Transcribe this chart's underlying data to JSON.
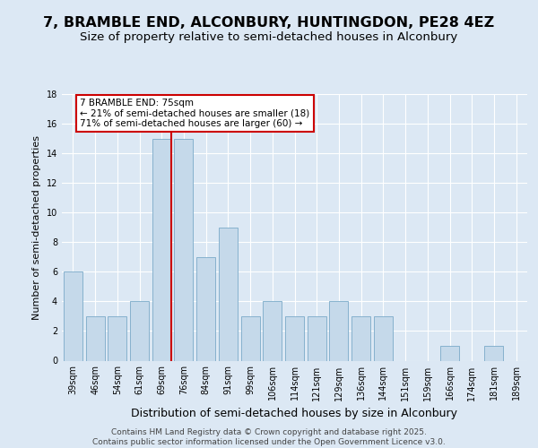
{
  "title1": "7, BRAMBLE END, ALCONBURY, HUNTINGDON, PE28 4EZ",
  "title2": "Size of property relative to semi-detached houses in Alconbury",
  "xlabel": "Distribution of semi-detached houses by size in Alconbury",
  "ylabel": "Number of semi-detached properties",
  "categories": [
    "39sqm",
    "46sqm",
    "54sqm",
    "61sqm",
    "69sqm",
    "76sqm",
    "84sqm",
    "91sqm",
    "99sqm",
    "106sqm",
    "114sqm",
    "121sqm",
    "129sqm",
    "136sqm",
    "144sqm",
    "151sqm",
    "159sqm",
    "166sqm",
    "174sqm",
    "181sqm",
    "189sqm"
  ],
  "values": [
    6,
    3,
    3,
    4,
    15,
    15,
    7,
    9,
    3,
    4,
    3,
    3,
    4,
    3,
    3,
    0,
    0,
    1,
    0,
    1,
    0
  ],
  "bar_color": "#c5d9ea",
  "bar_edge_color": "#7aaac8",
  "annotation_line1": "7 BRAMBLE END: 75sqm",
  "annotation_line2": "← 21% of semi-detached houses are smaller (18)",
  "annotation_line3": "71% of semi-detached houses are larger (60) →",
  "annotation_box_color": "#ffffff",
  "annotation_box_edge_color": "#cc0000",
  "redline_color": "#cc0000",
  "bg_color": "#dce8f4",
  "grid_color": "#ffffff",
  "ylim": [
    0,
    18
  ],
  "yticks": [
    0,
    2,
    4,
    6,
    8,
    10,
    12,
    14,
    16,
    18
  ],
  "footer_line1": "Contains HM Land Registry data © Crown copyright and database right 2025.",
  "footer_line2": "Contains public sector information licensed under the Open Government Licence v3.0.",
  "title1_fontsize": 11.5,
  "title2_fontsize": 9.5,
  "xlabel_fontsize": 9,
  "ylabel_fontsize": 8,
  "tick_fontsize": 7,
  "annotation_fontsize": 7.5,
  "footer_fontsize": 6.5,
  "redline_x": 4.43
}
